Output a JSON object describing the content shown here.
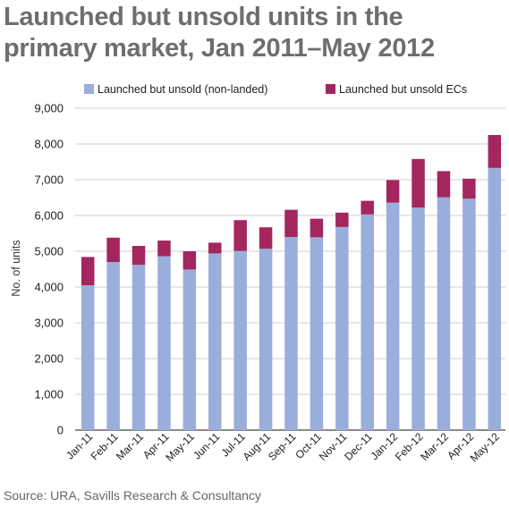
{
  "title_line1": "Launched but unsold units in the",
  "title_line2": "primary market, Jan 2011–May 2012",
  "source": "Source: URA, Savills Research & Consultancy",
  "colors": {
    "non_landed": "#9aaedc",
    "ecs": "#a3265e",
    "grid": "#bbbbbb",
    "axis": "#444444"
  },
  "chart_data": {
    "type": "bar",
    "stacked": true,
    "ylabel": "No. of units",
    "xlabel": "",
    "ylim": [
      0,
      9000
    ],
    "yticks": [
      0,
      1000,
      2000,
      3000,
      4000,
      5000,
      6000,
      7000,
      8000,
      9000
    ],
    "ytick_labels": [
      "0",
      "1,000",
      "2,000",
      "3,000",
      "4,000",
      "5,000",
      "6,000",
      "7,000",
      "8,000",
      "9,000"
    ],
    "grid": true,
    "legend_position": "top",
    "categories": [
      "Jan-11",
      "Feb-11",
      "Mar-11",
      "Apr-11",
      "May-11",
      "Jun-11",
      "Jul-11",
      "Aug-11",
      "Sep-11",
      "Oct-11",
      "Nov-11",
      "Dec-11",
      "Jan-12",
      "Feb-12",
      "Mar-12",
      "Apr-12",
      "May-12"
    ],
    "series": [
      {
        "name": "Launched but unsold (non-landed)",
        "values": [
          4050,
          4700,
          4620,
          4860,
          4490,
          4940,
          5010,
          5070,
          5400,
          5390,
          5680,
          6030,
          6360,
          6220,
          6510,
          6470,
          7330
        ]
      },
      {
        "name": "Launched but unsold ECs",
        "values": [
          790,
          680,
          530,
          440,
          510,
          300,
          860,
          600,
          760,
          520,
          400,
          380,
          630,
          1360,
          730,
          560,
          920
        ]
      }
    ]
  }
}
